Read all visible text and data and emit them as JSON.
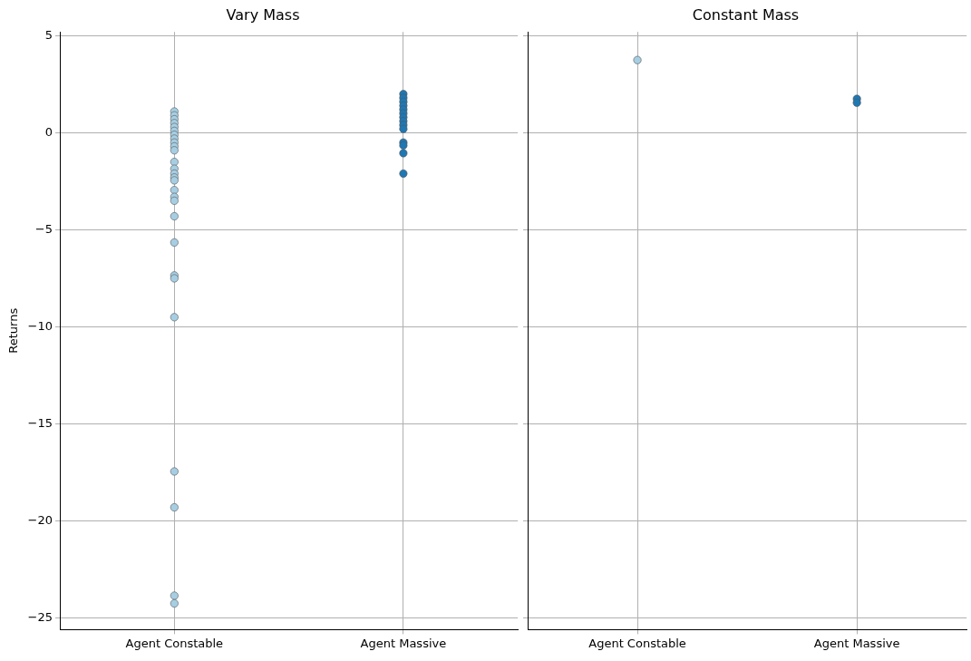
{
  "chart_data": [
    {
      "type": "scatter",
      "title": "Vary Mass",
      "ylabel": "Returns",
      "categories": [
        "Agent Constable",
        "Agent Massive"
      ],
      "ylim": [
        -25.6,
        5.2
      ],
      "yticks": [
        {
          "value": 5,
          "label": "5"
        },
        {
          "value": 0,
          "label": "0"
        },
        {
          "value": -5,
          "label": "−5"
        },
        {
          "value": -10,
          "label": "−10"
        },
        {
          "value": -15,
          "label": "−15"
        },
        {
          "value": -20,
          "label": "−20"
        },
        {
          "value": -25,
          "label": "−25"
        }
      ],
      "grid": true,
      "marker": "circle",
      "series": [
        {
          "color": "#a6cee3",
          "x": [
            "Agent Constable",
            "Agent Constable",
            "Agent Constable",
            "Agent Constable",
            "Agent Constable",
            "Agent Constable",
            "Agent Constable",
            "Agent Constable",
            "Agent Constable",
            "Agent Constable",
            "Agent Constable",
            "Agent Constable",
            "Agent Constable",
            "Agent Constable",
            "Agent Constable",
            "Agent Constable",
            "Agent Constable",
            "Agent Constable",
            "Agent Constable",
            "Agent Constable",
            "Agent Constable",
            "Agent Constable",
            "Agent Constable",
            "Agent Constable",
            "Agent Constable",
            "Agent Constable",
            "Agent Constable",
            "Agent Constable"
          ],
          "values": [
            1.1,
            0.9,
            0.7,
            0.5,
            0.3,
            0.1,
            -0.1,
            -0.3,
            -0.5,
            -0.7,
            -0.9,
            -1.5,
            -1.85,
            -2.1,
            -2.3,
            -2.45,
            -2.95,
            -3.3,
            -3.5,
            -4.3,
            -5.65,
            -7.35,
            -7.5,
            -9.5,
            -17.45,
            -19.3,
            -23.85,
            -24.25
          ]
        },
        {
          "color": "#1f78b4",
          "x": [
            "Agent Massive",
            "Agent Massive",
            "Agent Massive",
            "Agent Massive",
            "Agent Massive",
            "Agent Massive",
            "Agent Massive",
            "Agent Massive",
            "Agent Massive",
            "Agent Massive",
            "Agent Massive",
            "Agent Massive",
            "Agent Massive",
            "Agent Massive"
          ],
          "values": [
            2.0,
            1.8,
            1.6,
            1.4,
            1.2,
            1.0,
            0.8,
            0.6,
            0.4,
            0.2,
            -0.5,
            -0.65,
            -1.05,
            -2.1
          ]
        }
      ]
    },
    {
      "type": "scatter",
      "title": "Constant Mass",
      "categories": [
        "Agent Constable",
        "Agent Massive"
      ],
      "ylim": [
        -25.6,
        5.2
      ],
      "yticks": [
        5,
        0,
        -5,
        -10,
        -15,
        -20,
        -25
      ],
      "grid": true,
      "marker": "circle",
      "tick_labels": "x",
      "series": [
        {
          "color": "#a6cee3",
          "x": [
            "Agent Constable"
          ],
          "values": [
            3.75
          ]
        },
        {
          "color": "#1f78b4",
          "x": [
            "Agent Massive",
            "Agent Massive"
          ],
          "values": [
            1.75,
            1.55
          ]
        }
      ]
    }
  ]
}
